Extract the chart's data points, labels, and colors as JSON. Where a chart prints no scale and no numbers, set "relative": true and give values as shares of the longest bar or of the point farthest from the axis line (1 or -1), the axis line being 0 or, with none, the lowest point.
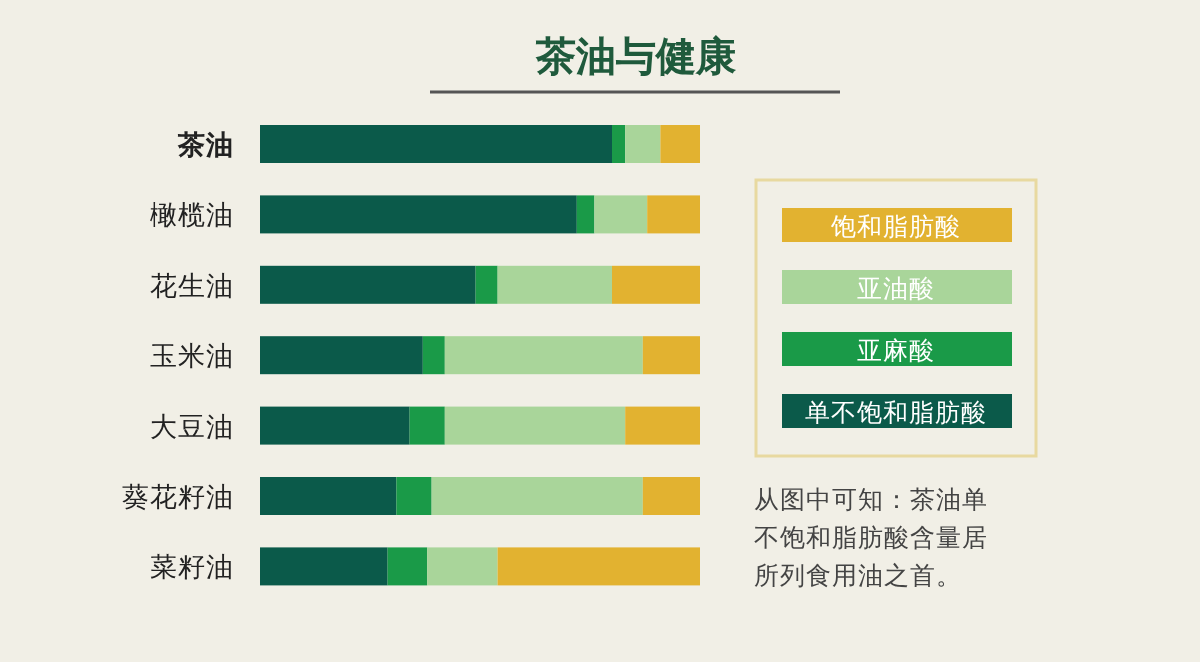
{
  "chart_data": {
    "type": "bar",
    "orientation": "horizontal",
    "stacked": true,
    "relative": true,
    "title": "茶油与健康",
    "categories": [
      "**茶油**",
      "橄榄油",
      "花生油",
      "玉米油",
      "大豆油",
      "葵花籽油",
      "菜籽油"
    ],
    "series": [
      {
        "name": "单不饱和脂肪酸",
        "color": "#0b5a4a",
        "values": [
          0.8,
          0.72,
          0.49,
          0.37,
          0.34,
          0.31,
          0.29
        ]
      },
      {
        "name": "亚麻酸",
        "color": "#1a9a48",
        "values": [
          0.03,
          0.04,
          0.05,
          0.05,
          0.08,
          0.08,
          0.09
        ]
      },
      {
        "name": "亚油酸",
        "color": "#a9d59a",
        "values": [
          0.08,
          0.12,
          0.26,
          0.45,
          0.41,
          0.48,
          0.16
        ]
      },
      {
        "name": "饱和脂肪酸",
        "color": "#e2b230",
        "values": [
          0.09,
          0.12,
          0.2,
          0.13,
          0.17,
          0.13,
          0.46
        ]
      }
    ],
    "legend": "right",
    "annotations": [
      "从图中可知：茶油单不饱和脂肪酸含量居所列食用油之首。"
    ]
  }
}
